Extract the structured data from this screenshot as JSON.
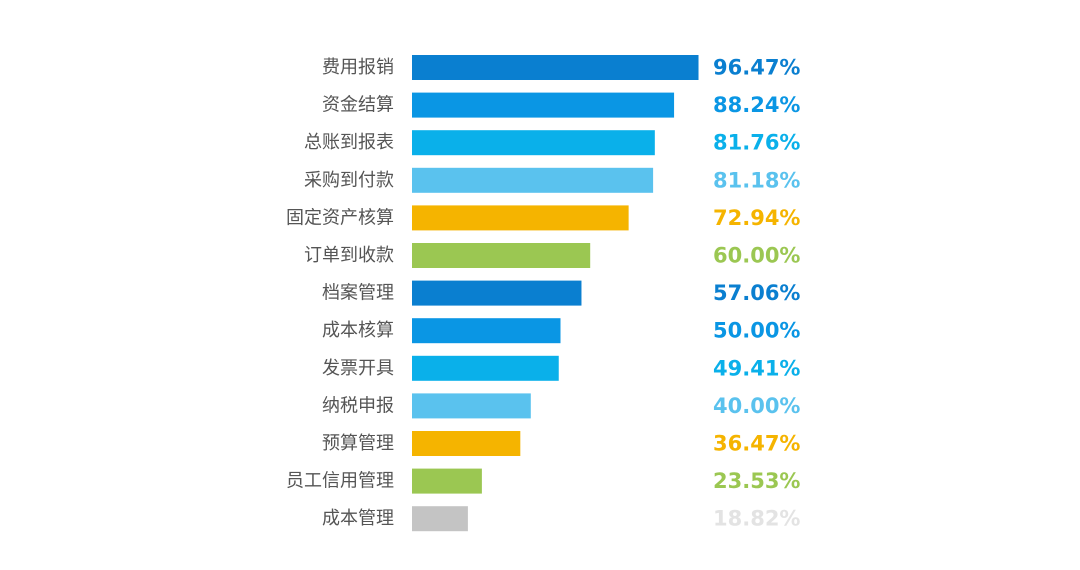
{
  "chart_data": {
    "type": "bar",
    "orientation": "horizontal",
    "title": "",
    "xlabel": "",
    "ylabel": "",
    "xlim": [
      0,
      100
    ],
    "grid": false,
    "categories": [
      "费用报销",
      "资金结算",
      "总账到报表",
      "采购到付款",
      "固定资产核算",
      "订单到收款",
      "档案管理",
      "成本核算",
      "发票开具",
      "纳税申报",
      "预算管理",
      "员工信用管理",
      "成本管理"
    ],
    "values": [
      96.47,
      88.24,
      81.76,
      81.18,
      72.94,
      60.0,
      57.06,
      50.0,
      49.41,
      40.0,
      36.47,
      23.53,
      18.82
    ],
    "value_labels": [
      "96.47%",
      "88.24%",
      "81.76%",
      "81.18%",
      "72.94%",
      "60.00%",
      "57.06%",
      "50.00%",
      "49.41%",
      "40.00%",
      "36.47%",
      "23.53%",
      "18.82%"
    ],
    "bar_colors": [
      "#0a7fd0",
      "#0a96e4",
      "#0ab0ea",
      "#5ac2ee",
      "#f5b400",
      "#9bc752",
      "#0a7fd0",
      "#0a96e4",
      "#0ab0ea",
      "#5ac2ee",
      "#f5b400",
      "#9bc752",
      "#c4c4c4"
    ],
    "label_colors": [
      "#0a7fd0",
      "#0a96e4",
      "#0ab0ea",
      "#5ac2ee",
      "#f5b400",
      "#9bc752",
      "#0a7fd0",
      "#0a96e4",
      "#0ab0ea",
      "#5ac2ee",
      "#f5b400",
      "#9bc752",
      "#e3e3e3"
    ]
  }
}
